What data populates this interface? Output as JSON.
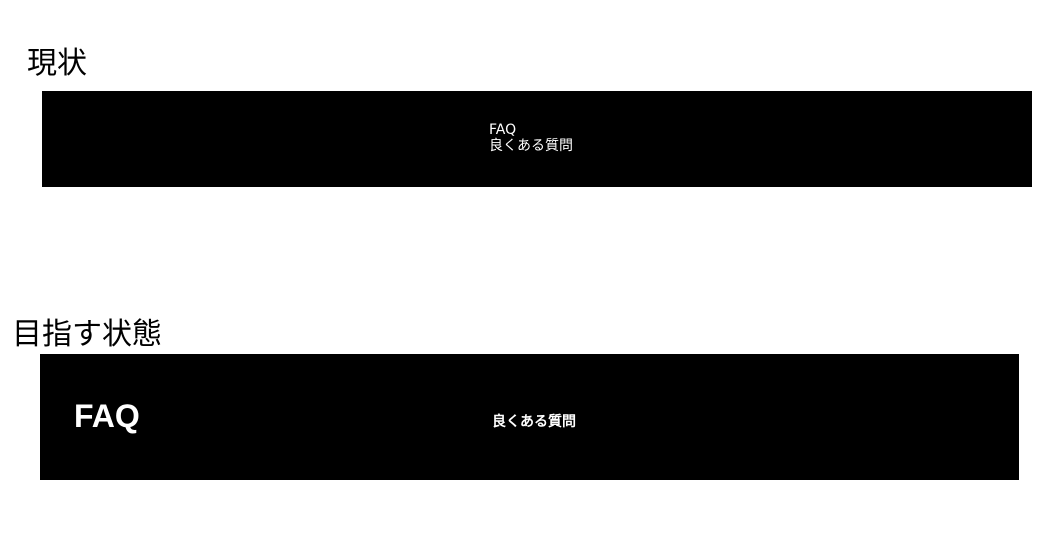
{
  "sections": {
    "current": {
      "heading": "現状",
      "banner": {
        "line1": "FAQ",
        "line2": "良くある質問"
      }
    },
    "goal": {
      "heading": "目指す状態",
      "banner": {
        "title": "FAQ",
        "subtitle": "良くある質問"
      }
    }
  },
  "colors": {
    "page_background": "#ffffff",
    "banner_background": "#000000",
    "banner_text": "#ffffff",
    "heading_text": "#000000"
  }
}
